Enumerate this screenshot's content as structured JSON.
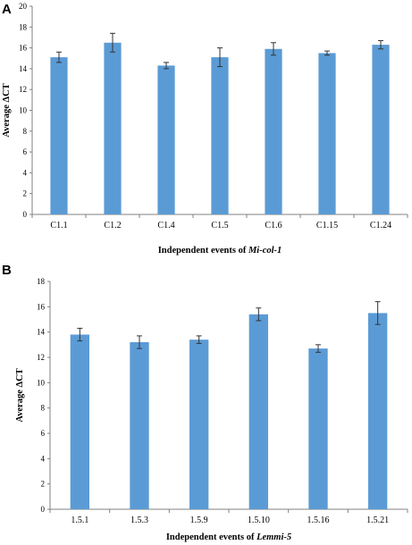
{
  "chart_data": [
    {
      "panel_label": "A",
      "type": "bar",
      "categories": [
        "C1.1",
        "C1.2",
        "C1.4",
        "C1.5",
        "C1.6",
        "C1.15",
        "C1.24"
      ],
      "values": [
        15.1,
        16.5,
        14.3,
        15.1,
        15.9,
        15.5,
        16.3
      ],
      "errors": [
        0.5,
        0.9,
        0.3,
        0.9,
        0.6,
        0.2,
        0.4
      ],
      "ylim": [
        0,
        20
      ],
      "yticks": [
        0,
        2,
        4,
        6,
        8,
        10,
        12,
        14,
        16,
        18,
        20
      ],
      "ylabel": "Average  ΔCT",
      "xlabel_prefix": "Independent events of ",
      "xlabel_italic": "Mi-col-1",
      "bar_color": "#5b9bd5",
      "grid": false
    },
    {
      "panel_label": "B",
      "type": "bar",
      "categories": [
        "1.5.1",
        "1.5.3",
        "1.5.9",
        "1.5.10",
        "1.5.16",
        "1.5.21"
      ],
      "values": [
        13.8,
        13.2,
        13.4,
        15.4,
        12.7,
        15.5
      ],
      "errors": [
        0.5,
        0.5,
        0.3,
        0.5,
        0.3,
        0.9
      ],
      "ylim": [
        0,
        18
      ],
      "yticks": [
        0,
        2,
        4,
        6,
        8,
        10,
        12,
        14,
        16,
        18
      ],
      "ylabel": "Average  ΔCT",
      "xlabel_prefix": "Independent events of ",
      "xlabel_italic": "Lemmi-5",
      "bar_color": "#5b9bd5",
      "grid": false
    }
  ]
}
